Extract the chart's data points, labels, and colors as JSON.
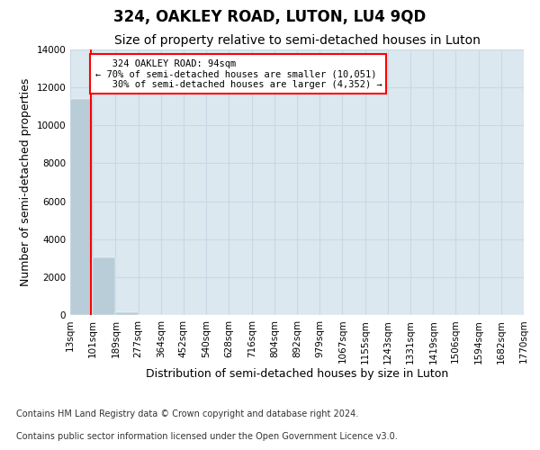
{
  "title": "324, OAKLEY ROAD, LUTON, LU4 9QD",
  "subtitle": "Size of property relative to semi-detached houses in Luton",
  "xlabel": "Distribution of semi-detached houses by size in Luton",
  "ylabel": "Number of semi-detached properties",
  "property_label": "324 OAKLEY ROAD: 94sqm",
  "pct_smaller": 70,
  "n_smaller": 10051,
  "pct_larger": 30,
  "n_larger": 4352,
  "bar_edges": [
    13,
    101,
    189,
    277,
    364,
    452,
    540,
    628,
    716,
    804,
    892,
    979,
    1067,
    1155,
    1243,
    1331,
    1419,
    1506,
    1594,
    1682,
    1770
  ],
  "bar_heights": [
    11400,
    3050,
    150,
    0,
    0,
    0,
    0,
    0,
    0,
    0,
    0,
    0,
    0,
    0,
    0,
    0,
    0,
    0,
    0,
    0
  ],
  "bar_color": "#b8cdd8",
  "red_line_x": 94,
  "grid_color": "#c8d8e4",
  "background_color": "#dce8f0",
  "ylim": [
    0,
    14000
  ],
  "yticks": [
    0,
    2000,
    4000,
    6000,
    8000,
    10000,
    12000,
    14000
  ],
  "tick_labels": [
    "13sqm",
    "101sqm",
    "189sqm",
    "277sqm",
    "364sqm",
    "452sqm",
    "540sqm",
    "628sqm",
    "716sqm",
    "804sqm",
    "892sqm",
    "979sqm",
    "1067sqm",
    "1155sqm",
    "1243sqm",
    "1331sqm",
    "1419sqm",
    "1506sqm",
    "1594sqm",
    "1682sqm",
    "1770sqm"
  ],
  "footer_line1": "Contains HM Land Registry data © Crown copyright and database right 2024.",
  "footer_line2": "Contains public sector information licensed under the Open Government Licence v3.0.",
  "title_fontsize": 12,
  "subtitle_fontsize": 10,
  "axis_label_fontsize": 9,
  "tick_fontsize": 7.5,
  "footer_fontsize": 7
}
